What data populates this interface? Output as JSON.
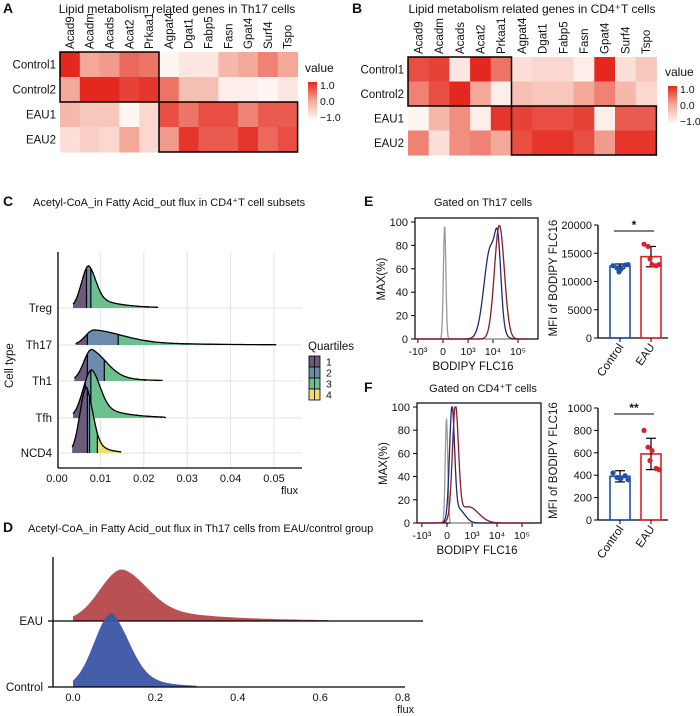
{
  "panels": {
    "A": "A",
    "B": "B",
    "C": "C",
    "D": "D",
    "E": "E",
    "F": "F"
  },
  "chart_data": [
    {
      "type": "heatmap",
      "title": "Lipid metabolism related genes in Th17 cells",
      "columns": [
        "Acad9",
        "Acadm",
        "Acads",
        "Acat2",
        "Prkaa1",
        "Agpat4",
        "Dgat1",
        "Fabp5",
        "Fasn",
        "Gpat4",
        "Surf4",
        "Tspo"
      ],
      "rows": [
        "Control1",
        "Control2",
        "EAU1",
        "EAU2"
      ],
      "values": [
        [
          1.0,
          0.0,
          0.1,
          0.5,
          0.4,
          -1.0,
          -0.8,
          -0.8,
          -0.2,
          0.0,
          0.3,
          0.0
        ],
        [
          0.0,
          1.0,
          1.0,
          0.8,
          0.9,
          0.4,
          -0.3,
          -0.3,
          -0.9,
          -0.9,
          -1.0,
          -0.8
        ],
        [
          -0.2,
          -0.4,
          -0.4,
          -1.0,
          -0.6,
          0.7,
          0.4,
          0.7,
          0.7,
          0.3,
          0.6,
          0.6
        ],
        [
          -0.7,
          -0.5,
          -0.6,
          0.0,
          -0.6,
          0.1,
          0.9,
          0.6,
          0.6,
          0.9,
          0.5,
          0.7
        ]
      ],
      "range": [
        -1,
        1
      ],
      "legend": {
        "title": "value",
        "ticks": [
          "1.0",
          "0.0",
          "−1.0"
        ]
      },
      "highlight_boxes": [
        {
          "rows": [
            "Control1",
            "Control2"
          ],
          "columns": [
            "Acad9",
            "Prkaa1"
          ]
        },
        {
          "rows": [
            "EAU1",
            "EAU2"
          ],
          "columns": [
            "Agpat4",
            "Tspo"
          ]
        }
      ],
      "colors": {
        "low": "#fef6f3",
        "mid": "#f3a898",
        "high": "#e4281f"
      }
    },
    {
      "type": "heatmap",
      "title": "Lipid metabolism related genes in CD4⁺T cells",
      "columns": [
        "Acad9",
        "Acadm",
        "Acads",
        "Acat2",
        "Prkaa1",
        "Agpat4",
        "Dgat1",
        "Fabp5",
        "Fasn",
        "Gpat4",
        "Surf4",
        "Tspo"
      ],
      "rows": [
        "Control1",
        "Control2",
        "EAU1",
        "EAU2"
      ],
      "values": [
        [
          0.7,
          0.8,
          -0.8,
          1.0,
          0.4,
          -0.7,
          -0.6,
          -0.6,
          -0.9,
          1.0,
          -0.7,
          -0.4
        ],
        [
          0.3,
          0.7,
          1.0,
          0.0,
          -0.9,
          -0.3,
          -0.4,
          -0.4,
          0.0,
          0.3,
          -0.2,
          -0.6
        ],
        [
          -1.0,
          -0.2,
          0.2,
          -0.9,
          0.9,
          0.8,
          0.7,
          0.7,
          0.8,
          -0.9,
          0.6,
          0.6
        ],
        [
          0.3,
          -0.7,
          0.2,
          0.3,
          0.0,
          0.7,
          0.9,
          0.9,
          0.7,
          0.1,
          0.9,
          0.9
        ]
      ],
      "range": [
        -1,
        1
      ],
      "legend": {
        "title": "value",
        "ticks": [
          "1.0",
          "0.0",
          "−1.0"
        ]
      },
      "highlight_boxes": [
        {
          "rows": [
            "Control1",
            "Control2"
          ],
          "columns": [
            "Acad9",
            "Prkaa1"
          ]
        },
        {
          "rows": [
            "EAU1",
            "EAU2"
          ],
          "columns": [
            "Agpat4",
            "Tspo"
          ]
        }
      ],
      "colors": {
        "low": "#fef6f3",
        "mid": "#f3a898",
        "high": "#e4281f"
      }
    },
    {
      "type": "ridgeline",
      "title": "Acetyl-CoA_in Fatty Acid_out flux in CD4⁺T cell subsets",
      "xlabel": "flux",
      "ylabel": "Cell type",
      "xlim": [
        0,
        0.055
      ],
      "xtick_values": [
        0,
        0.01,
        0.02,
        0.03,
        0.04,
        0.05
      ],
      "xticks": [
        "0.00",
        "0.01",
        "0.02",
        "0.03",
        "0.04",
        "0.05"
      ],
      "grid": true,
      "categories": [
        "Treg",
        "Th17",
        "Th1",
        "Tfh",
        "NCD4"
      ],
      "series": [
        {
          "name": "Treg",
          "min": 0.0037,
          "q1": 0.0068,
          "median": 0.0078,
          "q3": 0.021,
          "max": 0.0233,
          "mode": 0.0073,
          "relative_density": 0.64
        },
        {
          "name": "Th17",
          "min": 0.0043,
          "q1": 0.007,
          "median": 0.0141,
          "q3": 0.046,
          "max": 0.0505,
          "mode": 0.0085,
          "relative_density": 0.23
        },
        {
          "name": "Th1",
          "min": 0.004,
          "q1": 0.007,
          "median": 0.0109,
          "q3": 0.0203,
          "max": 0.0243,
          "mode": 0.008,
          "relative_density": 0.48
        },
        {
          "name": "Tfh",
          "min": 0.0037,
          "q1": 0.0065,
          "median": 0.0078,
          "q3": 0.024,
          "max": 0.0251,
          "mode": 0.008,
          "relative_density": 0.73
        },
        {
          "name": "NCD4",
          "min": 0.0035,
          "q1": 0.007,
          "median": 0.0075,
          "q3": 0.0093,
          "max": 0.0148,
          "mode": 0.0068,
          "relative_density": 1.0
        }
      ],
      "legend": {
        "title": "Quartiles",
        "items": [
          "1",
          "2",
          "3",
          "4"
        ],
        "position": "right"
      },
      "quartile_colors": [
        "#6b5a7a",
        "#6b8cab",
        "#6cc08f",
        "#efdd72"
      ]
    },
    {
      "type": "ridgeline",
      "title": "Acetyl-CoA_in Fatty Acid_out flux in Th17 cells from EAU/control group",
      "xlabel": "flux",
      "xtick_values": [
        0,
        0.2,
        0.4,
        0.6,
        0.8
      ],
      "xticks": [
        "0.0",
        "0.2",
        "0.4",
        "0.6",
        "0.8"
      ],
      "categories": [
        "EAU",
        "Control"
      ],
      "series": [
        {
          "name": "EAU",
          "min": 0.0,
          "mode": 0.12,
          "median": 0.17,
          "max": 0.62,
          "relative_density": 0.7,
          "color": "#b5474b"
        },
        {
          "name": "Control",
          "min": 0.0,
          "mode": 0.095,
          "median": 0.11,
          "max": 0.3,
          "relative_density": 1.0,
          "color": "#3a55a4"
        }
      ]
    },
    {
      "type": "histogram",
      "title": "Gated on Th17 cells",
      "xlabel": "BODIPY FLC16",
      "ylabel": "MAX(%)",
      "yticks": [
        0,
        20,
        40,
        60,
        80,
        100
      ],
      "xtick_values": [
        -1000,
        0,
        1000,
        10000,
        100000
      ],
      "xticks": [
        "-10³",
        "0",
        "10³",
        "10⁴",
        "10⁵"
      ],
      "series": [
        {
          "color": "#9a9a9a",
          "components": [
            {
              "center": 30,
              "height": 96,
              "width_decades": 0.05
            }
          ]
        },
        {
          "color": "#1f2d6e",
          "components": [
            {
              "center": 8000,
              "height": 78,
              "width_decades": 0.26
            },
            {
              "center": 16000,
              "height": 50,
              "width_decades": 0.12
            }
          ]
        },
        {
          "color": "#8b1a2a",
          "components": [
            {
              "center": 18000,
              "height": 97,
              "width_decades": 0.2
            }
          ]
        }
      ]
    },
    {
      "type": "bar",
      "ylabel": "MFI of BODIPY FLC16",
      "categories": [
        "Control",
        "EAU"
      ],
      "values": [
        12700,
        14400
      ],
      "sd": [
        400,
        1800
      ],
      "points": [
        [
          12800,
          12400,
          12200,
          12900,
          13000,
          11700
        ],
        [
          16600,
          16200,
          13000,
          12800,
          13000,
          14000
        ]
      ],
      "ylim": [
        0,
        20000
      ],
      "yticks": [
        "0",
        "5000",
        "10000",
        "15000",
        "20000"
      ],
      "ytick_values": [
        0,
        5000,
        10000,
        15000,
        20000
      ],
      "significance": "*",
      "colors": [
        "#1f4fb0",
        "#e0202a"
      ]
    },
    {
      "type": "histogram",
      "title": "Gated on CD4⁺T cells",
      "xlabel": "BODIPY FLC16",
      "ylabel": "MAX(%)",
      "yticks": [
        0,
        20,
        40,
        60,
        80,
        100
      ],
      "xtick_values": [
        -1000,
        0,
        1000,
        10000,
        100000
      ],
      "xticks": [
        "-10³",
        "0",
        "10³",
        "10⁴",
        "10⁵"
      ],
      "series": [
        {
          "color": "#9a9a9a",
          "components": [
            {
              "center": -10,
              "height": 90,
              "width_decades": 0.05
            }
          ]
        },
        {
          "color": "#1f2d6e",
          "components": [
            {
              "center": 95,
              "height": 94,
              "width_decades": 0.1
            },
            {
              "center": 250,
              "height": 12,
              "width_decades": 0.25
            }
          ]
        },
        {
          "color": "#8b1a2a",
          "components": [
            {
              "center": 170,
              "height": 96,
              "width_decades": 0.12
            },
            {
              "center": 700,
              "height": 14,
              "width_decades": 0.4
            }
          ]
        }
      ]
    },
    {
      "type": "bar",
      "ylabel": "MFI of BODIPY FLC16",
      "categories": [
        "Control",
        "EAU"
      ],
      "values": [
        390,
        590
      ],
      "sd": [
        50,
        140
      ],
      "points": [
        [
          420,
          380,
          370,
          395,
          360,
          375
        ],
        [
          800,
          650,
          620,
          460,
          450,
          530
        ]
      ],
      "ylim": [
        0,
        1000
      ],
      "yticks": [
        "0",
        "200",
        "400",
        "600",
        "800",
        "1000"
      ],
      "ytick_values": [
        0,
        200,
        400,
        600,
        800,
        1000
      ],
      "significance": "**",
      "colors": [
        "#1f4fb0",
        "#e0202a"
      ]
    }
  ]
}
